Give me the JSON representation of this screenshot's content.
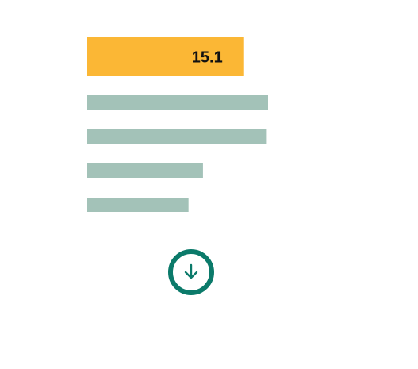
{
  "chart_data": {
    "type": "bar",
    "orientation": "horizontal",
    "categories": [
      "",
      "",
      "",
      "",
      ""
    ],
    "values": [
      15.1,
      17.5,
      17.3,
      11.2,
      9.8
    ],
    "value_labels": [
      "15.1",
      "",
      "",
      "",
      ""
    ],
    "xlim": [
      0,
      17.5
    ],
    "title": "",
    "xlabel": "",
    "ylabel": "",
    "grid": false,
    "legend": "none",
    "colors": {
      "highlight": "#fbb735",
      "bar": "#a3c2b8",
      "label": "#111111"
    }
  },
  "download_button": {
    "icon": "arrow-down-icon",
    "color": "#0b7a6a"
  }
}
